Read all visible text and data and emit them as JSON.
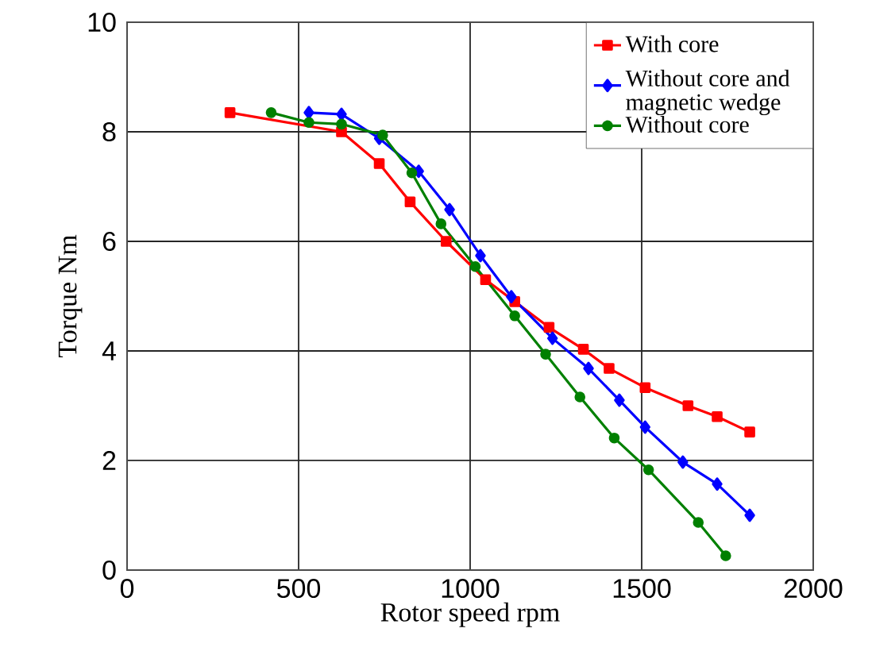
{
  "chart_data": {
    "type": "line",
    "xlabel": "Rotor speed rpm",
    "ylabel": "Torque Nm",
    "xlim": [
      0,
      2000
    ],
    "xticks": [
      0,
      500,
      1000,
      1500,
      2000
    ],
    "ylim": [
      0,
      10
    ],
    "yticks": [
      0,
      2,
      4,
      6,
      8,
      10
    ],
    "grid": true,
    "legend": "top right",
    "series": [
      {
        "name": "With core",
        "color": "#ff0000",
        "marker": "square",
        "x": [
          300,
          625,
          735,
          825,
          930,
          1045,
          1130,
          1230,
          1330,
          1405,
          1510,
          1635,
          1720,
          1815
        ],
        "values": [
          8.35,
          8.0,
          7.42,
          6.72,
          6.0,
          5.3,
          4.9,
          4.43,
          4.03,
          3.68,
          3.33,
          3.0,
          2.8,
          2.52
        ]
      },
      {
        "name": "Without core and magnetic wedge",
        "color": "#0000ff",
        "marker": "diamond",
        "x": [
          530,
          625,
          735,
          850,
          940,
          1030,
          1120,
          1240,
          1345,
          1435,
          1510,
          1620,
          1720,
          1815
        ],
        "values": [
          8.35,
          8.32,
          7.88,
          7.28,
          6.58,
          5.74,
          4.99,
          4.23,
          3.68,
          3.1,
          2.61,
          1.97,
          1.57,
          1.0
        ]
      },
      {
        "name": "Without core",
        "color": "#008000",
        "marker": "circle",
        "x": [
          420,
          530,
          625,
          745,
          830,
          915,
          1015,
          1130,
          1220,
          1320,
          1420,
          1520,
          1665,
          1745
        ],
        "values": [
          8.35,
          8.17,
          8.14,
          7.94,
          7.25,
          6.32,
          5.54,
          4.64,
          3.94,
          3.16,
          2.41,
          1.83,
          0.87,
          0.26
        ]
      }
    ]
  }
}
